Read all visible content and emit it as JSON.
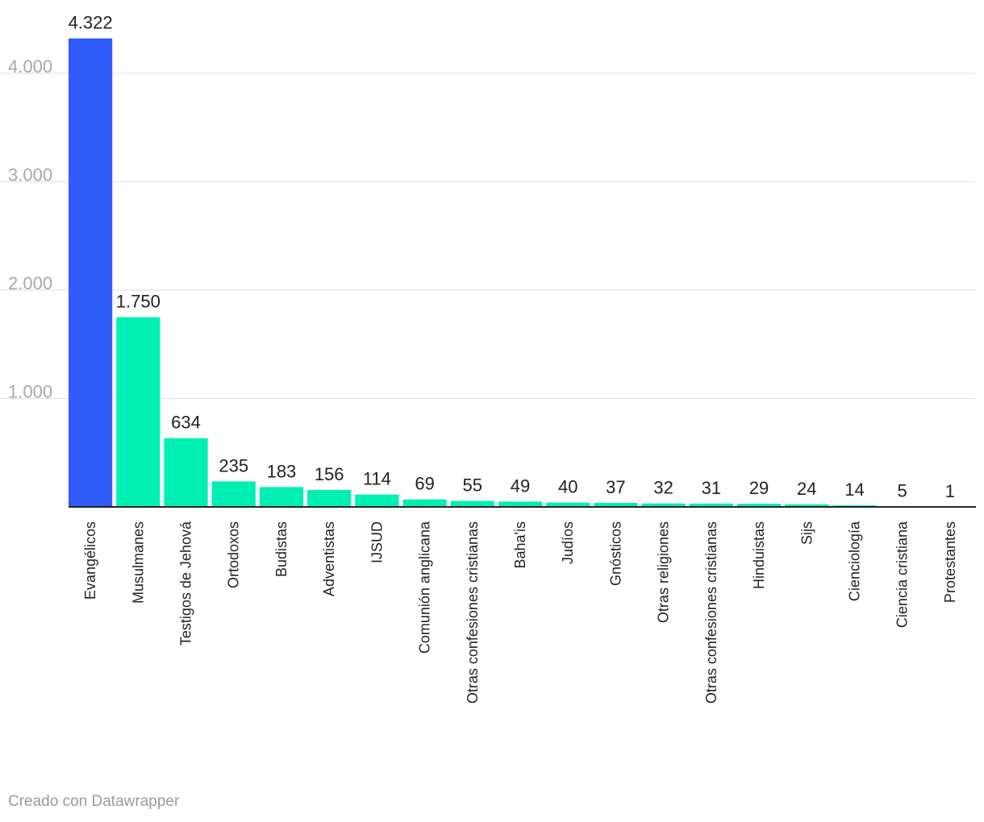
{
  "chart_data": {
    "type": "bar",
    "categories": [
      "Evangélicos",
      "Musulmanes",
      "Testigos de Jehová",
      "Ortodoxos",
      "Budistas",
      "Adventistas",
      "IJSUD",
      "Comunión anglicana",
      "Otras confesiones cristianas",
      "Baha'is",
      "Judíos",
      "Gnósticos",
      "Otras religiones",
      "Otras confesiones cristianas",
      "Hinduistas",
      "Sijs",
      "Cienciología",
      "Ciencia cristiana",
      "Protestantes"
    ],
    "values": [
      4322,
      1750,
      634,
      235,
      183,
      156,
      114,
      69,
      55,
      49,
      40,
      37,
      32,
      31,
      29,
      24,
      14,
      5,
      1
    ],
    "value_labels": [
      "4.322",
      "1.750",
      "634",
      "235",
      "183",
      "156",
      "114",
      "69",
      "55",
      "49",
      "40",
      "37",
      "32",
      "31",
      "29",
      "24",
      "14",
      "5",
      "1"
    ],
    "yticks": [
      1000,
      2000,
      3000,
      4000
    ],
    "ytick_labels": [
      "1.000",
      "2.000",
      "3.000",
      "4.000"
    ],
    "ylim": [
      0,
      4500
    ],
    "grid": true,
    "colors": {
      "highlight": "#2f5cfa",
      "bar": "#00f0b3",
      "grid": "#e2e2e2",
      "baseline": "#222222"
    },
    "highlight_index": 0
  },
  "footer": {
    "credit": "Creado con Datawrapper"
  }
}
